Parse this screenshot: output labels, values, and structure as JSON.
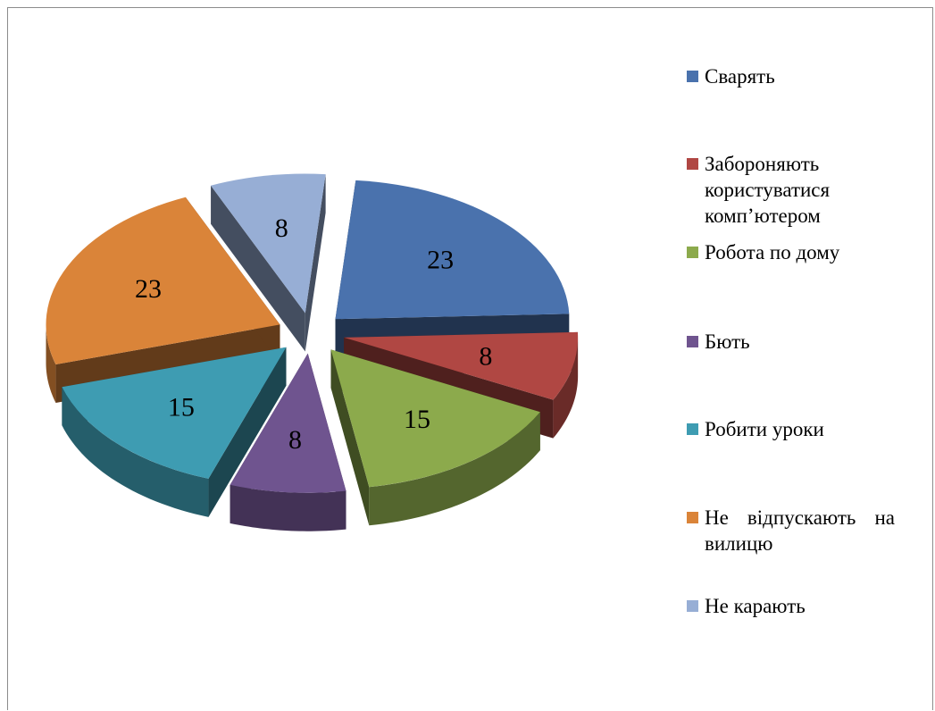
{
  "chart_data": {
    "type": "pie",
    "style": "3d-exploded",
    "categories": [
      "Сварять",
      "Забороняють користуватися комп’ютером",
      "Робота по дому",
      "Бють",
      "Робити уроки",
      "Не відпускають на вилицю",
      "Не карають"
    ],
    "values": [
      23,
      8,
      15,
      8,
      15,
      23,
      8
    ],
    "colors": [
      "#4A72AD",
      "#B04743",
      "#8CAA4C",
      "#6F548F",
      "#3E9CB2",
      "#DA8439",
      "#97AED5"
    ],
    "legend_position": "right"
  },
  "legend": {
    "items": [
      {
        "label": "Сварять",
        "color": "#4A72AD"
      },
      {
        "label": "Забороняють користуватися комп’ютером",
        "color": "#B04743"
      },
      {
        "label": "Робота по дому",
        "color": "#8CAA4C"
      },
      {
        "label": "Бють",
        "color": "#6F548F"
      },
      {
        "label": "Робити уроки",
        "color": "#3E9CB2"
      },
      {
        "label": "Не відпускають на вилицю",
        "color": "#DA8439"
      },
      {
        "label": "Не карають",
        "color": "#97AED5"
      }
    ]
  }
}
